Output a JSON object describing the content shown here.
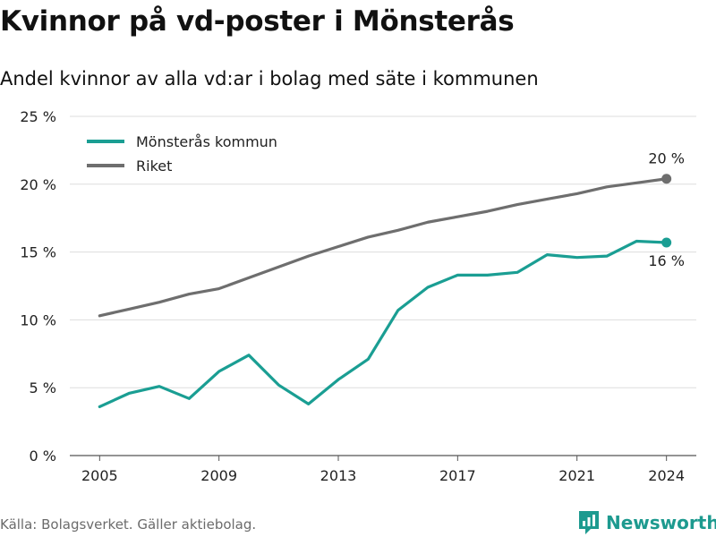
{
  "title": "Kvinnor på vd-poster i Mönsterås",
  "subtitle": "Andel kvinnor av alla vd:ar i bolag med säte i kommunen",
  "source": "Källa: Bolagsverket. Gäller aktiebolag.",
  "brand": {
    "name": "Newsworthy",
    "icon": "newsworthy-logo-icon",
    "color": "#1d9a8f"
  },
  "chart_data": {
    "type": "line",
    "x": [
      2005,
      2006,
      2007,
      2008,
      2009,
      2010,
      2011,
      2012,
      2013,
      2014,
      2015,
      2016,
      2017,
      2018,
      2019,
      2020,
      2021,
      2022,
      2023,
      2024
    ],
    "xlim": [
      2004,
      2025
    ],
    "xticks": [
      2005,
      2009,
      2013,
      2017,
      2021,
      2024
    ],
    "ylim": [
      0,
      25
    ],
    "yticks": [
      0,
      5,
      10,
      15,
      20,
      25
    ],
    "ytick_labels": [
      "0 %",
      "5 %",
      "10 %",
      "15 %",
      "20 %",
      "25 %"
    ],
    "grid": true,
    "legend_position": "top-left",
    "series": [
      {
        "name": "Mönsterås kommun",
        "color": "#1a9e93",
        "values": [
          3.6,
          4.6,
          5.1,
          4.2,
          6.2,
          7.4,
          5.2,
          3.8,
          5.6,
          7.1,
          10.7,
          12.4,
          13.3,
          13.3,
          13.5,
          14.8,
          14.6,
          14.7,
          15.8,
          15.7
        ],
        "end_label": "16 %",
        "end_label_position": "below"
      },
      {
        "name": "Riket",
        "color": "#6e6e6e",
        "values": [
          10.3,
          10.8,
          11.3,
          11.9,
          12.3,
          13.1,
          13.9,
          14.7,
          15.4,
          16.1,
          16.6,
          17.2,
          17.6,
          18.0,
          18.5,
          18.9,
          19.3,
          19.8,
          20.1,
          20.4
        ],
        "end_label": "20 %",
        "end_label_position": "above"
      }
    ]
  }
}
